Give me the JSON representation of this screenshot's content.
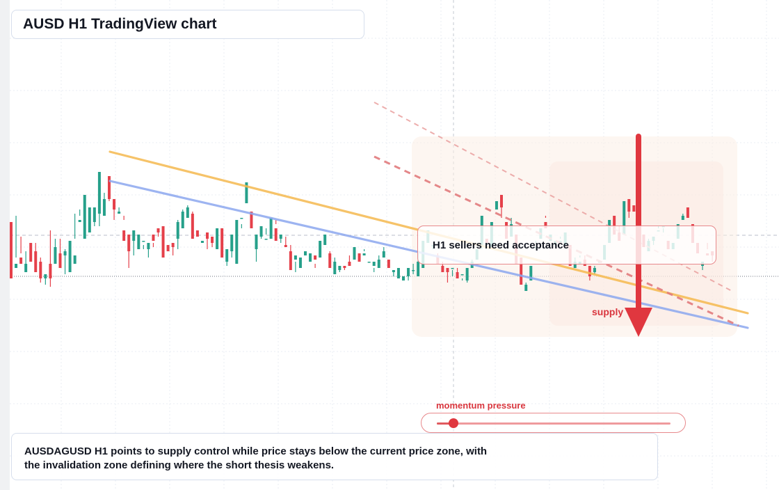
{
  "header": {
    "title": "AUSD H1 TradingView chart"
  },
  "annotations": {
    "callout": "H1 sellers need acceptance",
    "supply_label": "supply",
    "momentum_label": "momentum pressure"
  },
  "momentum": {
    "level": 0.07
  },
  "summary": {
    "line1": "AUSDAGUSD H1 points to supply control while price stays below the current price zone, with",
    "line2": "the invalidation zone defining where the short thesis weakens."
  },
  "chart_data": {
    "type": "candlestick",
    "symbol": "AUSDAGUSD",
    "timeframe": "H1",
    "bias": "short",
    "colors": {
      "bullish": "#26a08a",
      "bearish": "#e5404a",
      "trendline_upper": "#f5b94f",
      "trendline_lower": "#8ca8ef",
      "supply": "#e0373f"
    },
    "candles": [
      [
        1.06,
        0.9,
        1.04,
        0.79
      ],
      [
        0.84,
        1.09,
        0.89,
        0.86
      ],
      [
        0.89,
        0.99,
        0.91,
        0.86
      ],
      [
        0.82,
        0.92,
        0.82,
        0.86
      ],
      [
        0.96,
        0.95,
        0.91,
        0.87
      ],
      [
        0.92,
        0.96,
        0.91,
        0.82
      ],
      [
        0.87,
        0.89,
        0.77,
        0.79
      ],
      [
        0.79,
        0.81,
        0.76,
        0.81
      ],
      [
        0.86,
        1.02,
        0.75,
        0.79
      ],
      [
        0.86,
        0.98,
        0.94,
        0.94
      ],
      [
        0.91,
        0.98,
        0.89,
        0.84
      ],
      [
        0.9,
        0.93,
        0.81,
        0.92
      ],
      [
        0.82,
        0.87,
        0.86,
        0.97
      ],
      [
        0.86,
        1.1,
        0.98,
        0.9
      ],
      [
        1.06,
        1.09,
        1.12,
        1.07
      ],
      [
        0.98,
        1.02,
        0.99,
        1.19
      ],
      [
        1.01,
        1.06,
        1.06,
        1.13
      ],
      [
        1.06,
        1.07,
        1.04,
        1.13
      ],
      [
        1.1,
        1.04,
        1.23,
        1.3
      ],
      [
        1.09,
        1.2,
        1.14,
        1.17
      ],
      [
        1.28,
        1.2,
        1.16,
        1.17
      ],
      [
        1.17,
        1.16,
        1.07,
        1.12
      ],
      [
        1.1,
        1.13,
        1.1,
        1.11
      ],
      [
        1.02,
        1.07,
        1.09,
        0.97
      ],
      [
        1.0,
        0.96,
        0.84,
        0.92
      ],
      [
        0.97,
        0.9,
        0.97,
        1.02
      ],
      [
        0.93,
        0.93,
        0.99,
        1.0
      ],
      [
        0.97,
        0.93,
        0.95,
        0.97
      ],
      [
        0.93,
        0.94,
        0.89,
        0.96
      ],
      [
        1.0,
        0.94,
        0.96,
        0.97
      ],
      [
        1.03,
        1.03,
        0.99,
        1.01
      ],
      [
        1.04,
        1.0,
        0.94,
        0.89
      ],
      [
        0.95,
        0.92,
        0.93,
        0.92
      ],
      [
        0.96,
        0.94,
        0.9,
        0.94
      ],
      [
        0.98,
        1.07,
        0.93,
        1.06
      ],
      [
        1.03,
        1.08,
        1.12,
        1.11
      ],
      [
        1.08,
        1.13,
        1.14,
        1.13
      ],
      [
        1.1,
        1.11,
        1.07,
        0.98
      ],
      [
        1.02,
        1.01,
        1.01,
        0.99
      ],
      [
        0.96,
        0.95,
        0.95,
        0.97
      ],
      [
        1.01,
        0.93,
        1.0,
        0.98
      ],
      [
        0.99,
        0.99,
        0.94,
        0.96
      ],
      [
        0.93,
        1.0,
        0.97,
        1.03
      ],
      [
        1.03,
        0.97,
        0.93,
        0.89
      ],
      [
        0.87,
        0.85,
        0.88,
        0.93
      ],
      [
        0.92,
        0.89,
        0.93,
        1.0
      ],
      [
        0.86,
        0.95,
        1.01,
        1.07
      ],
      [
        1.08,
        1.05,
        1.03,
        1.08
      ],
      [
        1.15,
        1.16,
        1.2,
        1.25
      ],
      [
        1.11,
        1.09,
        1.06,
        1.03
      ],
      [
        0.93,
        0.87,
        0.94,
        1.0
      ],
      [
        0.99,
        0.98,
        1.01,
        1.04
      ],
      [
        0.98,
        1.0,
        1.03,
        0.98
      ],
      [
        0.98,
        1.04,
        1.06,
        1.08
      ],
      [
        1.03,
        1.07,
        1.05,
        0.97
      ],
      [
        0.98,
        0.96,
        0.98,
        1.0
      ],
      [
        0.95,
        0.99,
        0.94,
        0.94
      ],
      [
        0.92,
        0.95,
        0.86,
        0.83
      ],
      [
        0.88,
        0.82,
        0.87,
        0.9
      ],
      [
        0.84,
        0.88,
        0.86,
        0.89
      ],
      [
        0.9,
        0.92,
        0.91,
        0.92
      ],
      [
        0.87,
        0.91,
        0.89,
        0.91
      ],
      [
        0.9,
        0.86,
        0.84,
        0.88
      ],
      [
        0.89,
        0.9,
        0.94,
        0.97
      ],
      [
        0.95,
        0.96,
        0.98,
        1.0
      ],
      [
        0.91,
        0.92,
        0.87,
        0.84
      ],
      [
        0.81,
        0.85,
        0.89,
        0.87
      ],
      [
        0.83,
        0.85,
        0.82,
        0.85
      ],
      [
        0.85,
        0.84,
        0.83,
        0.84
      ],
      [
        0.87,
        0.9,
        0.86,
        0.85
      ],
      [
        0.88,
        0.91,
        0.92,
        0.94
      ],
      [
        0.91,
        0.9,
        0.87,
        0.87
      ],
      [
        0.9,
        0.93,
        0.92,
        0.91
      ],
      [
        0.87,
        0.84,
        0.84,
        0.87
      ],
      [
        0.85,
        0.82,
        0.84,
        0.87
      ],
      [
        0.84,
        0.84,
        0.9,
        0.88
      ],
      [
        0.89,
        0.9,
        0.94,
        0.92
      ],
      [
        0.88,
        0.85,
        0.85,
        0.84
      ],
      [
        0.82,
        0.8,
        0.82,
        0.83
      ],
      [
        0.79,
        0.79,
        0.79,
        0.84
      ],
      [
        0.78,
        0.8,
        0.78,
        0.8
      ],
      [
        0.8,
        0.78,
        0.82,
        0.84
      ],
      [
        0.83,
        0.86,
        0.81,
        0.83
      ],
      [
        0.8,
        0.86,
        0.91,
        0.87
      ],
      [
        0.84,
        0.88,
        0.93,
        0.97
      ],
      [
        0.96,
        0.99,
        1.02,
        1.02
      ],
      [
        0.95,
        0.93,
        0.95,
        0.95
      ],
      [
        0.9,
        0.91,
        0.87,
        0.86
      ],
      [
        0.85,
        0.87,
        0.83,
        0.82
      ],
      [
        0.84,
        0.77,
        0.83,
        0.82
      ],
      [
        0.84,
        0.8,
        0.83,
        0.84
      ],
      [
        0.82,
        0.8,
        0.84,
        0.79
      ],
      [
        0.81,
        0.79,
        0.78,
        0.81
      ],
      [
        0.78,
        0.77,
        0.8,
        0.84
      ],
      [
        0.84,
        0.86,
        0.88,
        0.87
      ],
      [
        0.88,
        0.88,
        0.88,
        0.93
      ],
      [
        0.94,
        0.93,
        0.98,
        1.09
      ],
      [
        0.98,
        0.97,
        0.96,
        0.96
      ],
      [
        0.94,
        0.96,
        1.02,
        1.06
      ],
      [
        1.12,
        1.15,
        1.13,
        1.16
      ],
      [
        1.19,
        1.13,
        1.08,
        1.13
      ],
      [
        1.06,
        1.06,
        1.03,
        0.98
      ],
      [
        0.99,
        1.02,
        1.08,
        1.05
      ],
      [
        1.0,
        0.93,
        0.88,
        0.86
      ],
      [
        0.89,
        0.83,
        0.84,
        0.76
      ],
      [
        0.73,
        0.77,
        0.75,
        0.76
      ],
      [
        0.78,
        0.81,
        0.78,
        0.85
      ],
      [
        0.94,
        0.97,
        0.96,
        0.94
      ],
      [
        0.98,
        0.99,
        1.01,
        1.03
      ],
      [
        1.06,
        1.09,
        1.08,
        1.03
      ],
      [
        0.97,
        0.98,
        1.0,
        1.0
      ],
      [
        0.95,
        0.94,
        0.95,
        0.97
      ],
      [
        0.96,
        0.98,
        0.99,
        0.97
      ],
      [
        0.95,
        1.0,
        0.99,
        1.01
      ],
      [
        0.95,
        0.92,
        0.87,
        0.85
      ],
      [
        0.84,
        0.84,
        0.89,
        0.87
      ],
      [
        0.86,
        0.89,
        0.9,
        0.87
      ],
      [
        0.88,
        0.86,
        0.9,
        0.85
      ],
      [
        0.85,
        0.81,
        0.78,
        0.8
      ],
      [
        0.82,
        0.81,
        0.85,
        0.84
      ],
      [
        0.87,
        0.86,
        0.86,
        0.87
      ],
      [
        0.88,
        0.92,
        0.95,
        0.95
      ],
      [
        0.96,
        0.97,
        0.97,
        1.07
      ],
      [
        1.09,
        1.05,
        1.02,
        1.0
      ],
      [
        1.01,
        1.04,
        0.99,
        0.97
      ],
      [
        1.0,
        1.05,
        1.1,
        1.16
      ],
      [
        1.17,
        1.15,
        1.08,
        1.11
      ],
      [
        1.14,
        1.13,
        1.13,
        1.11
      ],
      [
        1.07,
        1.05,
        1.02,
        1.07
      ],
      [
        1.0,
        0.95,
        0.97,
        0.94
      ],
      [
        0.92,
        0.94,
        0.98,
        0.97
      ],
      [
        0.97,
        0.95,
        0.99,
        0.99
      ],
      [
        1.02,
        1.03,
        1.04,
        1.02
      ],
      [
        1.04,
        1.03,
        1.01,
        1.04
      ],
      [
        0.97,
        0.96,
        0.94,
        0.93
      ],
      [
        0.93,
        0.95,
        0.93,
        0.96
      ],
      [
        0.98,
        0.98,
        1.01,
        1.05
      ],
      [
        1.07,
        1.1,
        1.09,
        1.09
      ],
      [
        1.13,
        1.13,
        1.12,
        1.08
      ],
      [
        1.05,
        1.04,
        1.01,
        0.96
      ],
      [
        0.96,
        0.95,
        0.92,
        0.91
      ],
      [
        0.85,
        0.83,
        0.86,
        0.87
      ],
      [
        0.91,
        0.96,
        0.93,
        0.9
      ],
      [
        0.92,
        0.9,
        0.87,
        0.9
      ]
    ]
  }
}
